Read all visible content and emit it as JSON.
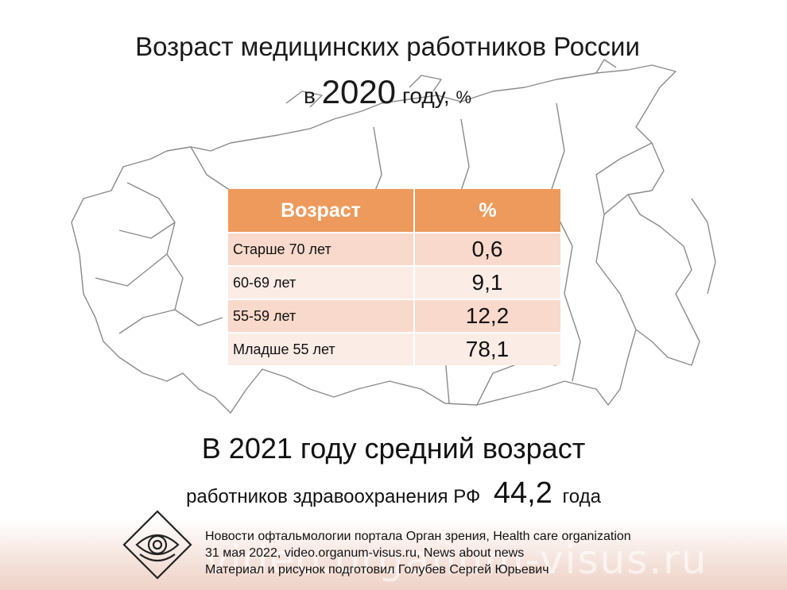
{
  "title": {
    "line1": "Возраст медицинских работников России",
    "prefix": "в",
    "year": "2020",
    "suffix": "году,",
    "unit": "%"
  },
  "table": {
    "header_age": "Возраст",
    "header_pct": "%",
    "rows": [
      {
        "label": "Старше 70 лет",
        "value": "0,6"
      },
      {
        "label": "60-69 лет",
        "value": "9,1"
      },
      {
        "label": "55-59 лет",
        "value": "12,2"
      },
      {
        "label": "Младше 55 лет",
        "value": "78,1"
      }
    ]
  },
  "fact": {
    "line1": "В 2021 году средний возраст",
    "line2_prefix": "работников здравоохранения РФ",
    "value": "44,2",
    "line2_suffix": "года"
  },
  "footer": {
    "line1": "Новости офтальмологии портала Орган зрения, Health care organization",
    "line2": "31 мая 2022, video.organum-visus.ru, News about news",
    "line3": "Материал и рисунок подготовил Голубев Сергей Юрьевич"
  },
  "watermark": "video.organum-visus.ru",
  "colors": {
    "header_bg": "#ed9a5c",
    "row_dark": "#f8d9cb",
    "row_light": "#fcece6"
  }
}
